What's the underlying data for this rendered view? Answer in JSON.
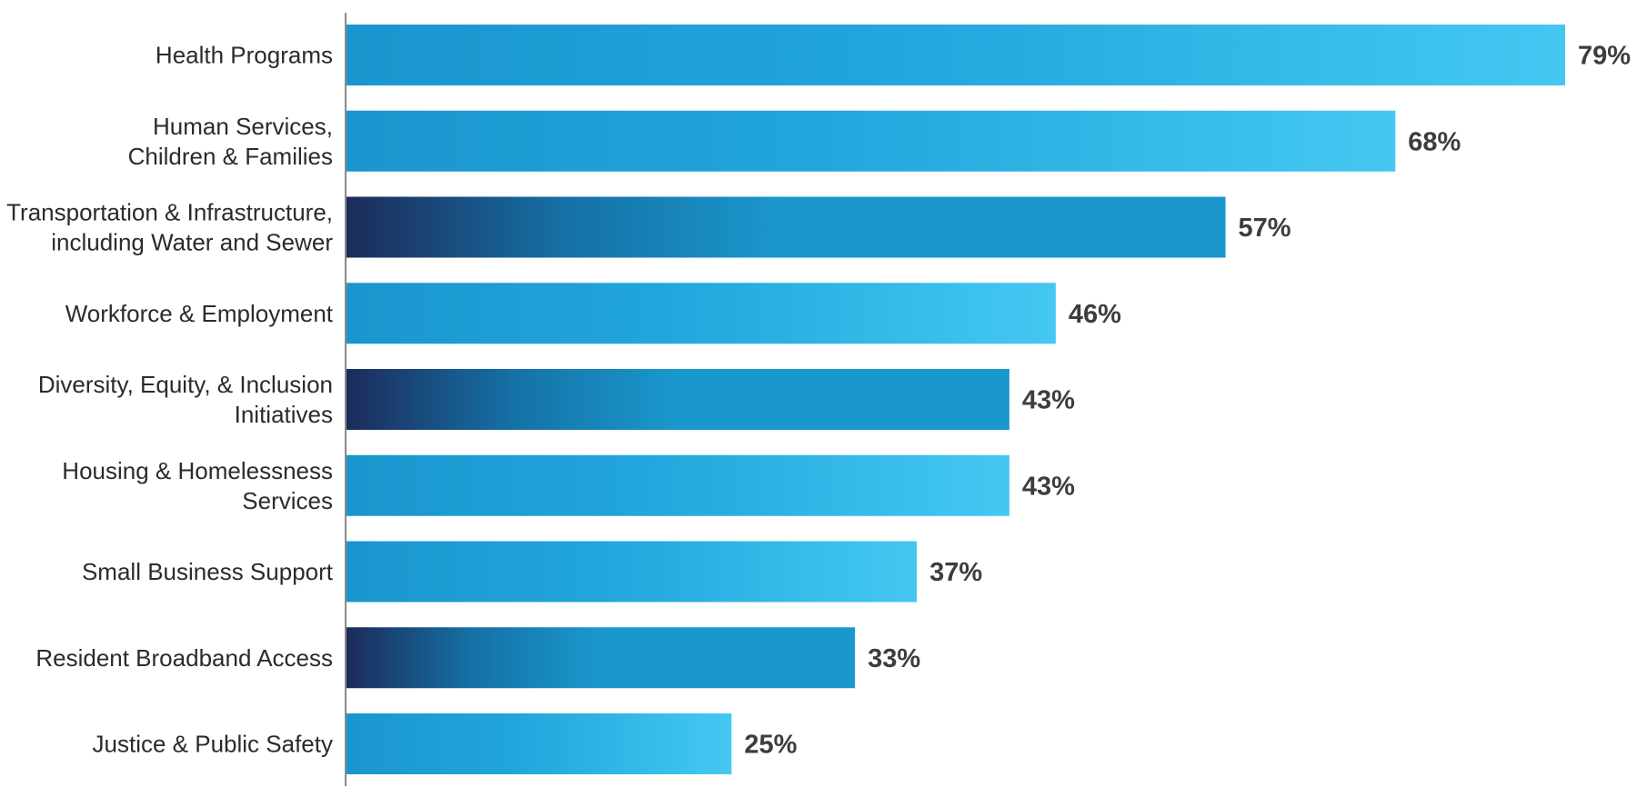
{
  "chart_data": {
    "type": "bar",
    "orientation": "horizontal",
    "categories": [
      [
        "Health Programs"
      ],
      [
        "Human Services,",
        "Children & Families"
      ],
      [
        "Transportation & Infrastructure,",
        "including Water and Sewer"
      ],
      [
        "Workforce & Employment"
      ],
      [
        "Diversity, Equity, & Inclusion",
        "Initiatives"
      ],
      [
        "Housing & Homelessness",
        "Services"
      ],
      [
        "Small Business Support"
      ],
      [
        "Resident Broadband Access"
      ],
      [
        "Justice & Public Safety"
      ]
    ],
    "values": [
      79,
      68,
      57,
      46,
      43,
      43,
      37,
      33,
      25
    ],
    "value_labels": [
      "79%",
      "68%",
      "57%",
      "46%",
      "43%",
      "43%",
      "37%",
      "33%",
      "25%"
    ],
    "bar_styles": [
      "light",
      "light",
      "dark",
      "light",
      "dark",
      "light",
      "light",
      "dark",
      "light"
    ],
    "title": "",
    "xlabel": "",
    "ylabel": "",
    "xlim": [
      0,
      79
    ],
    "grid": false,
    "legend": "none",
    "colors": {
      "light_start": "#1a96cd",
      "light_mid": "#22a6dc",
      "light_end": "#44c8f2",
      "dark_start": "#1c2b5a",
      "dark_mid": "#1571a6",
      "dark_end": "#1a98cd",
      "axis": "#8a8a8a",
      "label_text": "#2b2b2b",
      "value_text": "#3d3d3d"
    }
  }
}
